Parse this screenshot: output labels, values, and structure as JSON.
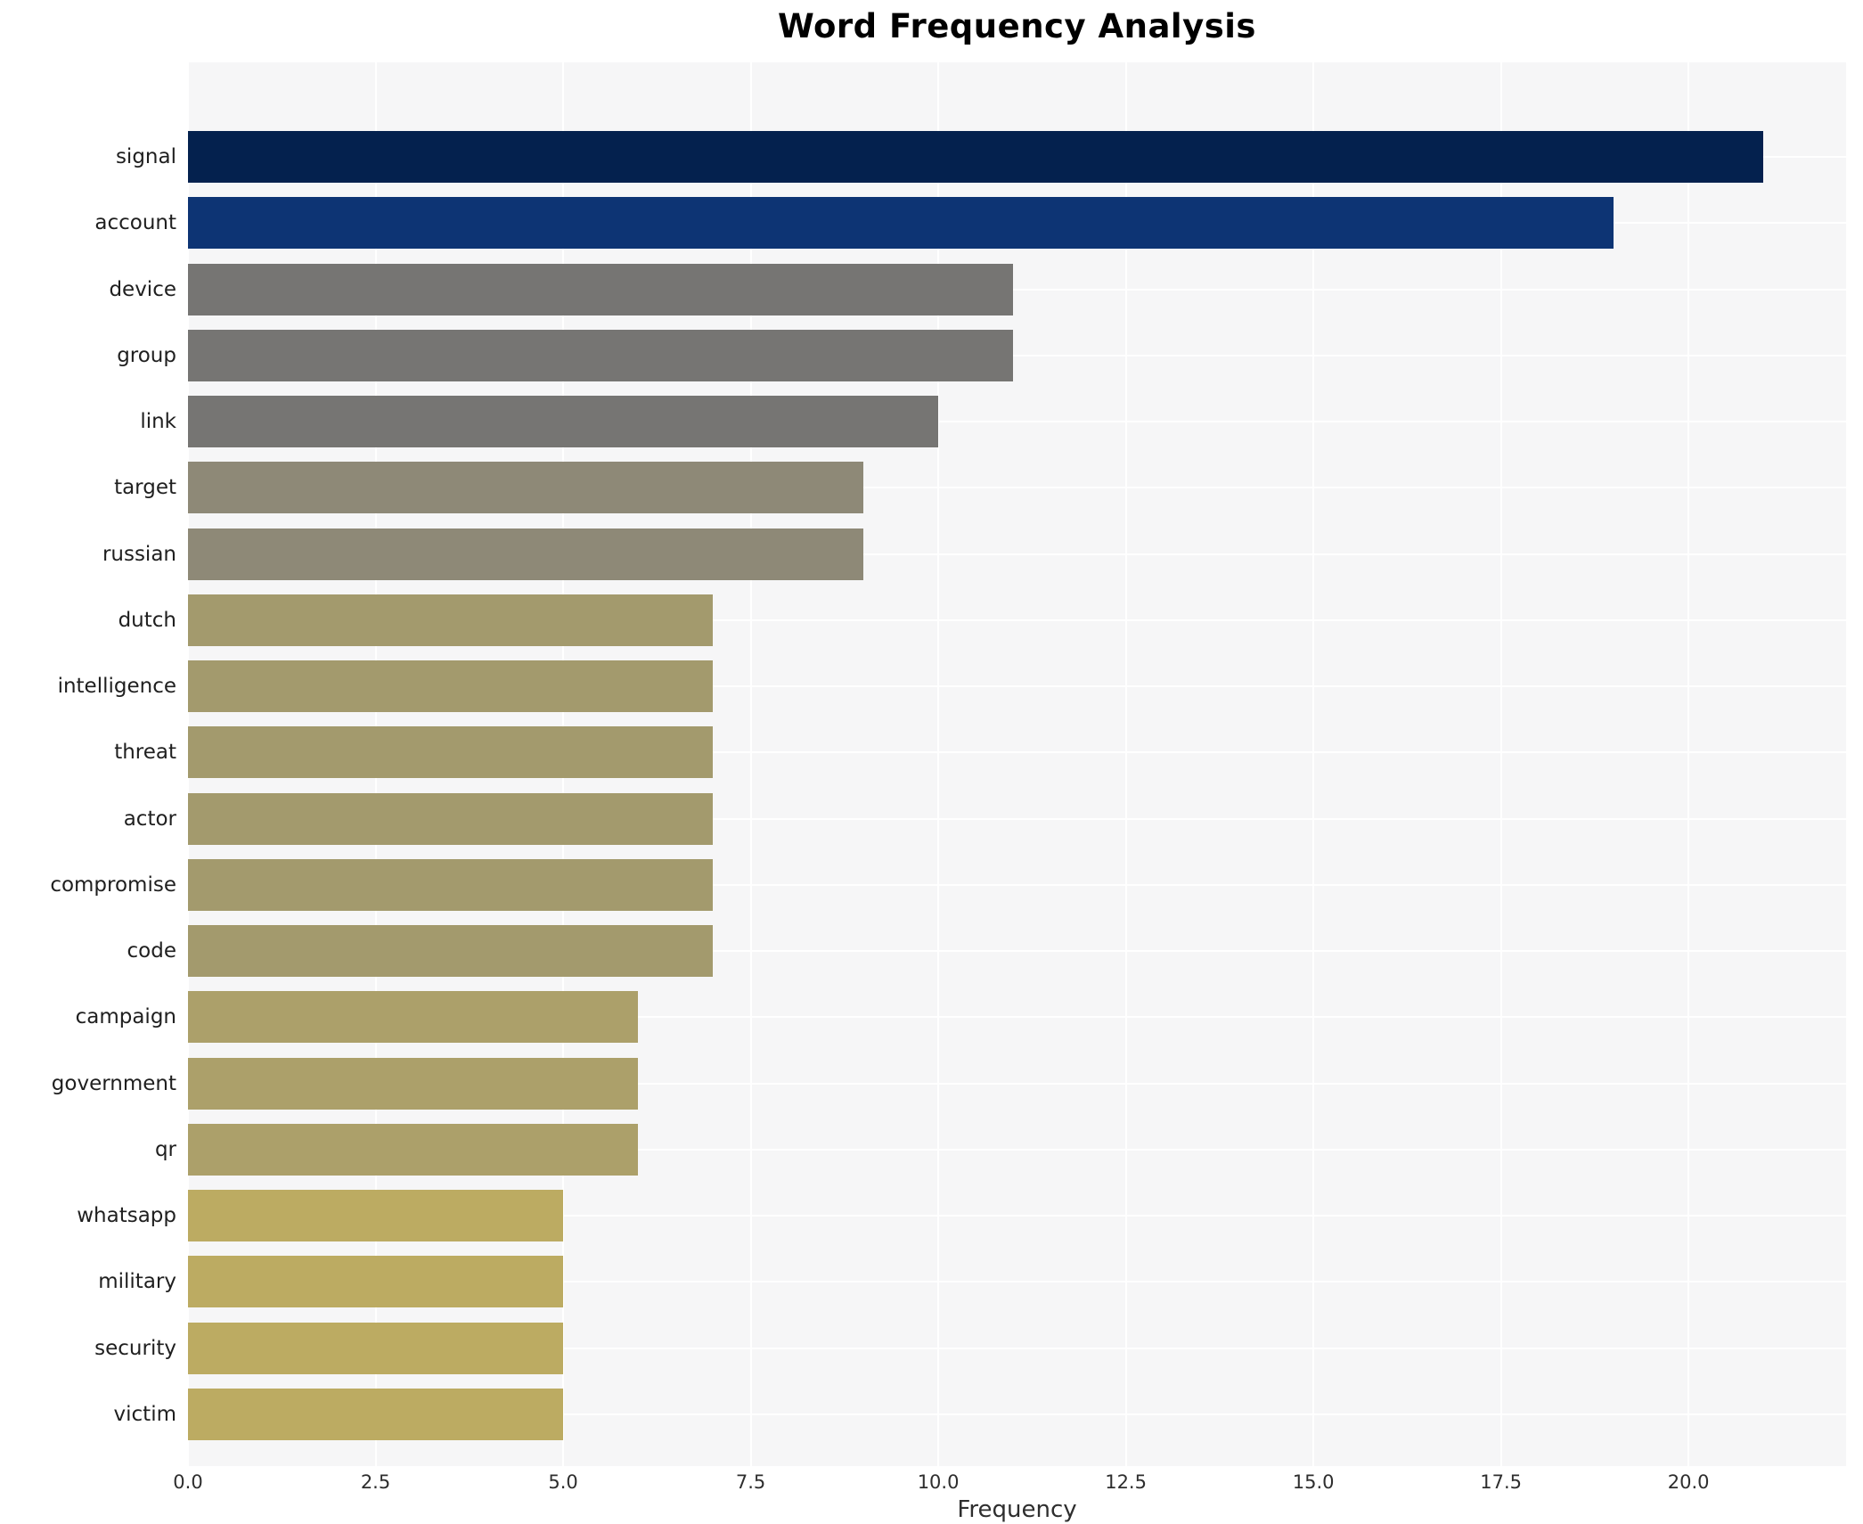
{
  "chart_data": {
    "type": "bar",
    "orientation": "horizontal",
    "title": "Word Frequency Analysis",
    "xlabel": "Frequency",
    "ylabel": "",
    "categories": [
      "signal",
      "account",
      "device",
      "group",
      "link",
      "target",
      "russian",
      "dutch",
      "intelligence",
      "threat",
      "actor",
      "compromise",
      "code",
      "campaign",
      "government",
      "qr",
      "whatsapp",
      "military",
      "security",
      "victim"
    ],
    "values": [
      21,
      19,
      11,
      11,
      10,
      9,
      9,
      7,
      7,
      7,
      7,
      7,
      7,
      6,
      6,
      6,
      5,
      5,
      5,
      5
    ],
    "bar_colors": [
      "#04214e",
      "#0d3474",
      "#767573",
      "#767573",
      "#767573",
      "#8e8977",
      "#8e8977",
      "#a39a6d",
      "#a39a6d",
      "#a39a6d",
      "#a39a6d",
      "#a39a6d",
      "#a39a6d",
      "#aca06a",
      "#aca06a",
      "#aca06a",
      "#bcab62",
      "#bcab62",
      "#bcab62",
      "#bcab62"
    ],
    "xticks": [
      0,
      2.5,
      5,
      7.5,
      10,
      12.5,
      15,
      17.5,
      20
    ],
    "xtick_labels": [
      "0.0",
      "2.5",
      "5.0",
      "7.5",
      "10.0",
      "12.5",
      "15.0",
      "17.5",
      "20.0"
    ],
    "xlim": [
      0,
      22.1
    ],
    "grid": true,
    "legend": false,
    "plot_bg_color": "#f6f6f7",
    "grid_color": "#ffffff"
  }
}
